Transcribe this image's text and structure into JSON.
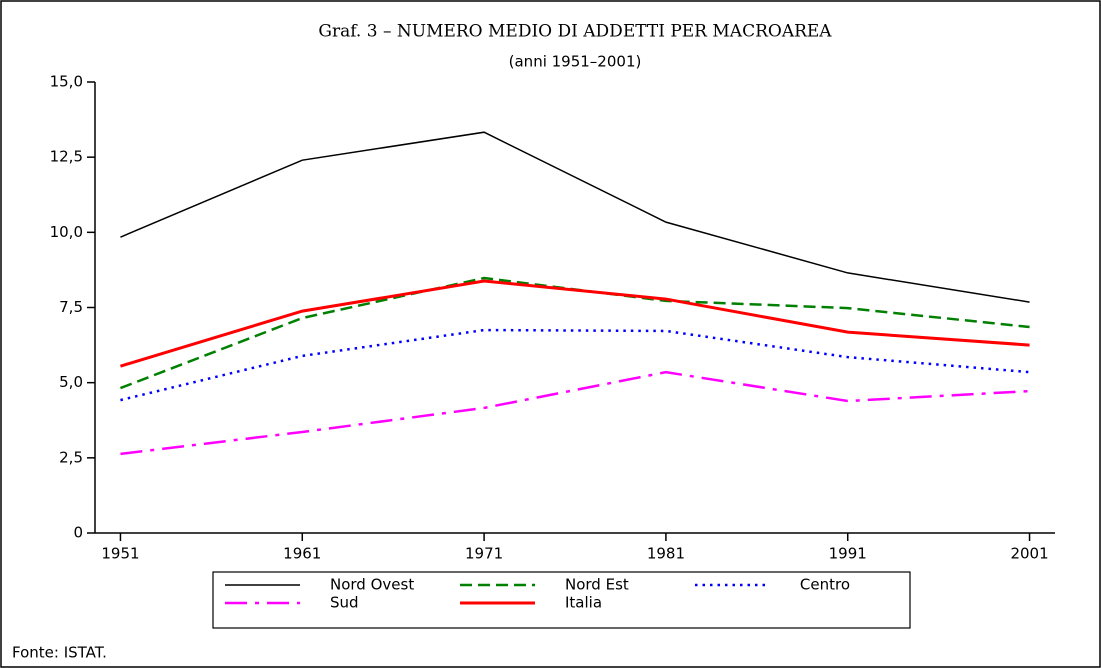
{
  "chart_data": {
    "type": "line",
    "title": "Graf. 3 – NUMERO MEDIO DI ADDETTI PER MACROAREA",
    "subtitle": "(anni 1951–2001)",
    "x": [
      1951,
      1961,
      1971,
      1981,
      1991,
      2001
    ],
    "xlim": [
      1949.6,
      2002.4
    ],
    "xticks": [
      1951,
      1961,
      1971,
      1981,
      1991,
      2001
    ],
    "ylim": [
      0,
      15
    ],
    "yticks": [
      0,
      {
        "value": 2.5,
        "label": "2,5"
      },
      {
        "value": 5,
        "label": "5,0"
      },
      {
        "value": 7.5,
        "label": "7,5"
      },
      {
        "value": 10,
        "label": "10,0"
      },
      {
        "value": 12.5,
        "label": "12,5"
      },
      {
        "value": 15,
        "label": "15,0"
      }
    ],
    "grid": false,
    "legend": "bottom",
    "series": [
      {
        "name": "Nord Ovest",
        "color": "#000000",
        "style": "solid",
        "width": 1.5,
        "values": [
          9.84,
          12.4,
          13.33,
          10.34,
          8.65,
          7.68
        ]
      },
      {
        "name": "Nord Est",
        "color": "#008000",
        "style": "dashed",
        "width": 2.5,
        "values": [
          4.82,
          7.15,
          8.48,
          7.72,
          7.48,
          6.85
        ]
      },
      {
        "name": "Centro",
        "color": "#0000ff",
        "style": "dotted",
        "width": 2.5,
        "values": [
          4.42,
          5.89,
          6.75,
          6.72,
          5.85,
          5.35
        ]
      },
      {
        "name": "Sud",
        "color": "#ff00ff",
        "style": "dashdot",
        "width": 2.5,
        "values": [
          2.63,
          3.36,
          4.16,
          5.35,
          4.39,
          4.72
        ]
      },
      {
        "name": "Italia",
        "color": "#ff0000",
        "style": "solid",
        "width": 3,
        "values": [
          5.55,
          7.38,
          8.38,
          7.78,
          6.68,
          6.25
        ]
      }
    ],
    "source": "Fonte: ISTAT."
  }
}
